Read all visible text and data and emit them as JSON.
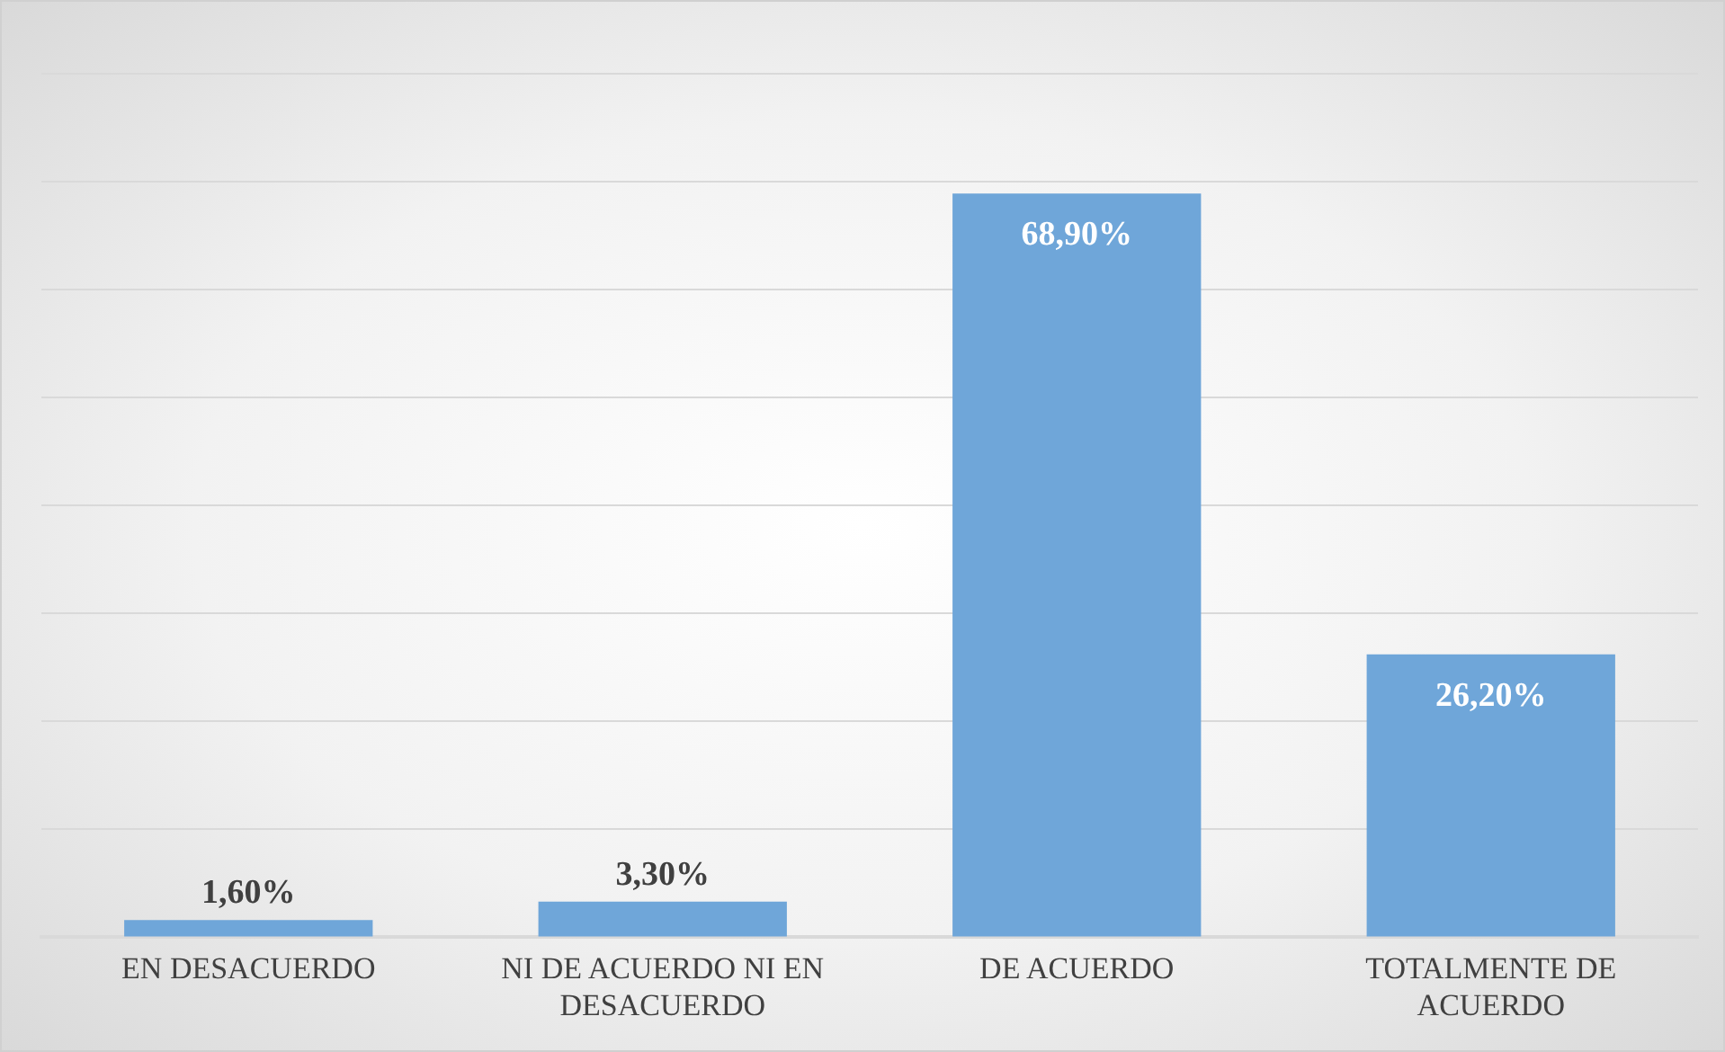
{
  "chart_data": {
    "type": "bar",
    "categories": [
      "EN DESACUERDO",
      "NI DE ACUERDO NI EN DESACUERDO",
      "DE ACUERDO",
      "TOTALMENTE DE ACUERDO"
    ],
    "values": [
      1.6,
      3.3,
      68.9,
      26.2
    ],
    "value_labels": [
      "1,60%",
      "3,30%",
      "68,90%",
      "26,20%"
    ],
    "color": "#6fa6d9",
    "ylim": [
      0,
      80
    ],
    "yticks": [
      {
        "value": 0,
        "label": null
      },
      {
        "value": 10,
        "label": null
      },
      {
        "value": 20,
        "label": null
      },
      {
        "value": 30,
        "label": null
      },
      {
        "value": 40,
        "label": null
      },
      {
        "value": 50,
        "label": null
      },
      {
        "value": 60,
        "label": null
      },
      {
        "value": 70,
        "label": null
      },
      {
        "value": 80,
        "label": null
      }
    ],
    "grid": "y",
    "tick_labels": "x",
    "legend": false
  }
}
